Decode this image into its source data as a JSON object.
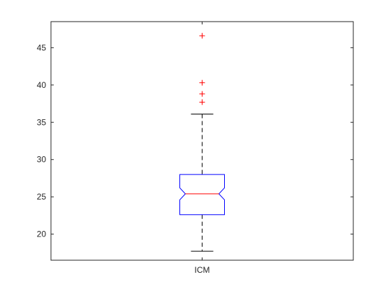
{
  "chart_data": {
    "type": "boxplot",
    "title": "",
    "xlabel": "",
    "ylabel": "",
    "categories": [
      "ICM"
    ],
    "ylim": [
      16.5,
      48.5
    ],
    "yticks": [
      20,
      25,
      30,
      35,
      40,
      45
    ],
    "ytick_labels": [
      "20",
      "25",
      "30",
      "35",
      "40",
      "45"
    ],
    "notched": true,
    "grid": false,
    "boxes": [
      {
        "category": "ICM",
        "whisker_low": 17.7,
        "q1": 22.6,
        "median": 25.4,
        "q3": 28.0,
        "whisker_high": 36.1,
        "notch_low": 24.6,
        "notch_high": 26.2,
        "outliers": [
          37.7,
          38.8,
          40.3,
          46.6
        ]
      }
    ],
    "colors": {
      "box": "#0000ff",
      "median": "#ff0000",
      "whisker": "#000000",
      "outlier": "#ff0000",
      "axis": "#262626"
    }
  }
}
